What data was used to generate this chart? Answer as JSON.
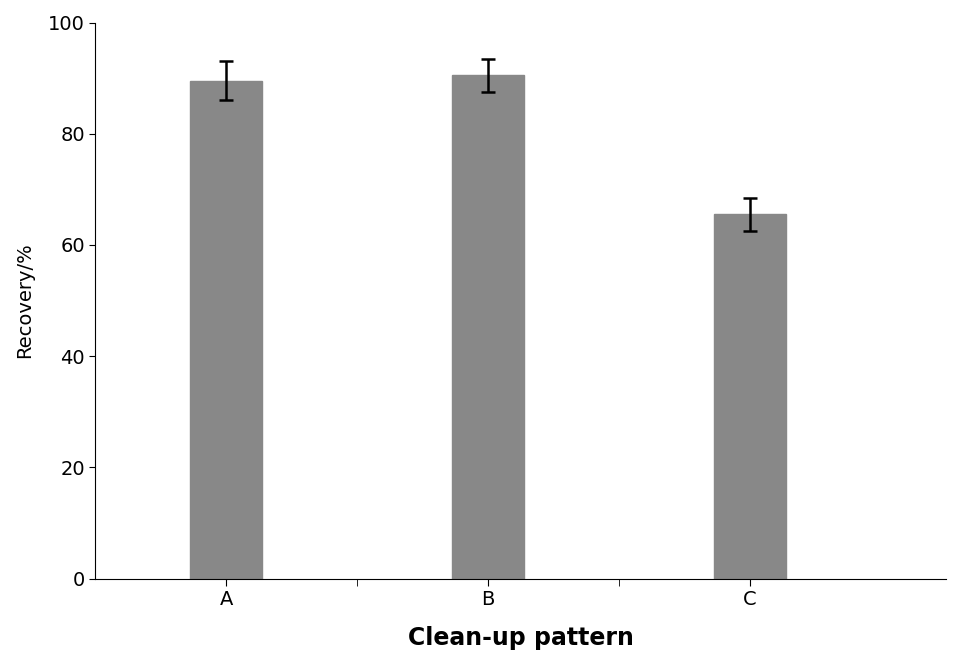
{
  "categories": [
    "A",
    "B",
    "C"
  ],
  "values": [
    89.5,
    90.5,
    65.5
  ],
  "errors": [
    3.5,
    3.0,
    3.0
  ],
  "bar_color": "#888888",
  "bar_width": 0.55,
  "x_positions": [
    1,
    3,
    5
  ],
  "xlabel": "Clean-up pattern",
  "ylabel": "Recovery/%",
  "ylim": [
    0,
    100
  ],
  "xlim": [
    0,
    6.5
  ],
  "yticks": [
    0,
    20,
    40,
    60,
    80,
    100
  ],
  "xlabel_fontsize": 17,
  "ylabel_fontsize": 14,
  "tick_fontsize": 14,
  "xlabel_fontweight": "bold",
  "background_color": "#ffffff",
  "error_capsize": 5,
  "error_linewidth": 1.8,
  "error_color": "black"
}
